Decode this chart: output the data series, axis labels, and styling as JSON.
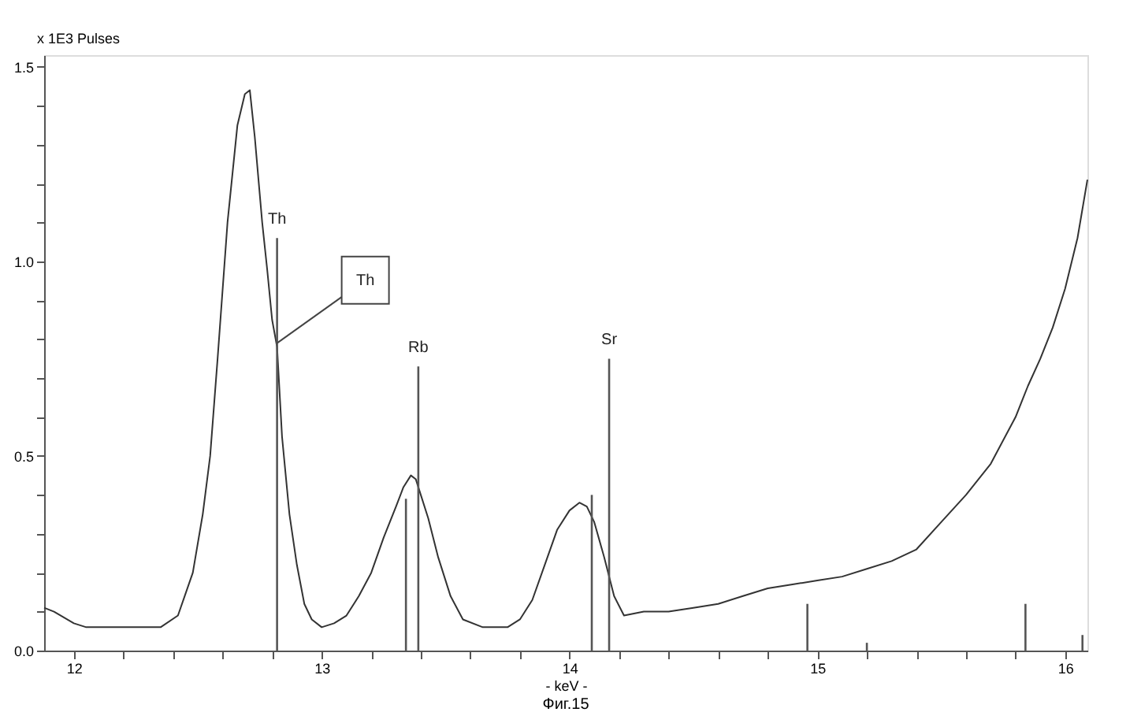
{
  "chart_data": {
    "type": "line",
    "xlabel": "- keV -",
    "ylabel": "x 1E3 Pulses",
    "xlim": [
      11.88,
      16.09
    ],
    "ylim": [
      0,
      1.53
    ],
    "xticks": [
      12,
      {
        "value": 12.2,
        "label": null
      },
      {
        "value": 12.4,
        "label": null
      },
      {
        "value": 12.6,
        "label": null
      },
      {
        "value": 12.8,
        "label": null
      },
      13,
      {
        "value": 13.2,
        "label": null
      },
      {
        "value": 13.4,
        "label": null
      },
      {
        "value": 13.6,
        "label": null
      },
      {
        "value": 13.8,
        "label": null
      },
      14,
      {
        "value": 14.2,
        "label": null
      },
      {
        "value": 14.4,
        "label": null
      },
      {
        "value": 14.6,
        "label": null
      },
      {
        "value": 14.8,
        "label": null
      },
      15,
      {
        "value": 15.2,
        "label": null
      },
      {
        "value": 15.4,
        "label": null
      },
      {
        "value": 15.6,
        "label": null
      },
      {
        "value": 15.8,
        "label": null
      },
      16
    ],
    "yticks": [
      {
        "value": 0,
        "label": "0.0"
      },
      {
        "value": 0.1,
        "label": null
      },
      {
        "value": 0.2,
        "label": null
      },
      {
        "value": 0.3,
        "label": null
      },
      {
        "value": 0.4,
        "label": null
      },
      {
        "value": 0.5,
        "label": "0.5"
      },
      {
        "value": 0.6,
        "label": null
      },
      {
        "value": 0.7,
        "label": null
      },
      {
        "value": 0.8,
        "label": null
      },
      {
        "value": 0.9,
        "label": null
      },
      {
        "value": 1.0,
        "label": "1.0"
      },
      {
        "value": 1.1,
        "label": null
      },
      {
        "value": 1.2,
        "label": null
      },
      {
        "value": 1.3,
        "label": null
      },
      {
        "value": 1.4,
        "label": null
      },
      {
        "value": 1.5,
        "label": "1.5"
      }
    ],
    "grid": false,
    "marker": "none",
    "line_style": "solid",
    "series": [
      {
        "color": "#333333",
        "x": [
          11.88,
          11.92,
          12.0,
          12.05,
          12.2,
          12.35,
          12.42,
          12.48,
          12.52,
          12.55,
          12.58,
          12.62,
          12.66,
          12.69,
          12.71,
          12.73,
          12.76,
          12.78,
          12.8,
          12.82,
          12.84,
          12.87,
          12.9,
          12.93,
          12.96,
          13.0,
          13.05,
          13.1,
          13.15,
          13.2,
          13.25,
          13.3,
          13.33,
          13.36,
          13.38,
          13.4,
          13.43,
          13.47,
          13.52,
          13.57,
          13.65,
          13.75,
          13.8,
          13.85,
          13.9,
          13.95,
          14.0,
          14.04,
          14.07,
          14.1,
          14.14,
          14.18,
          14.22,
          14.3,
          14.4,
          14.5,
          14.6,
          14.7,
          14.8,
          14.9,
          15.0,
          15.1,
          15.2,
          15.3,
          15.4,
          15.5,
          15.6,
          15.7,
          15.8,
          15.85,
          15.9,
          15.95,
          16.0,
          16.05,
          16.09
        ],
        "values": [
          0.11,
          0.1,
          0.07,
          0.06,
          0.06,
          0.06,
          0.09,
          0.2,
          0.35,
          0.5,
          0.75,
          1.1,
          1.35,
          1.43,
          1.44,
          1.32,
          1.1,
          0.98,
          0.85,
          0.78,
          0.55,
          0.35,
          0.22,
          0.12,
          0.08,
          0.06,
          0.07,
          0.09,
          0.14,
          0.2,
          0.29,
          0.37,
          0.42,
          0.45,
          0.44,
          0.4,
          0.34,
          0.24,
          0.14,
          0.08,
          0.06,
          0.06,
          0.08,
          0.13,
          0.22,
          0.31,
          0.36,
          0.38,
          0.37,
          0.33,
          0.24,
          0.14,
          0.09,
          0.1,
          0.1,
          0.11,
          0.12,
          0.14,
          0.16,
          0.17,
          0.18,
          0.19,
          0.21,
          0.23,
          0.26,
          0.33,
          0.4,
          0.48,
          0.6,
          0.68,
          0.75,
          0.83,
          0.93,
          1.06,
          1.21
        ]
      },
      {
        "type": "bar",
        "color": "#555555",
        "x": [
          12.82,
          13.34,
          13.39,
          14.09,
          14.16,
          14.96,
          15.2,
          15.84,
          16.07
        ],
        "values": [
          1.06,
          0.39,
          0.73,
          0.4,
          0.75,
          0.12,
          0.02,
          0.12,
          0.04
        ]
      }
    ],
    "annotations": [
      {
        "text": "Th",
        "x": 12.82,
        "y": 1.06
      },
      {
        "text": "Th",
        "x": 12.82,
        "y": 0.79
      },
      {
        "text": "Rb",
        "x": 13.39,
        "y": 0.73
      },
      {
        "text": "Sr",
        "x": 14.16,
        "y": 0.75
      },
      "Фиг.15"
    ]
  }
}
